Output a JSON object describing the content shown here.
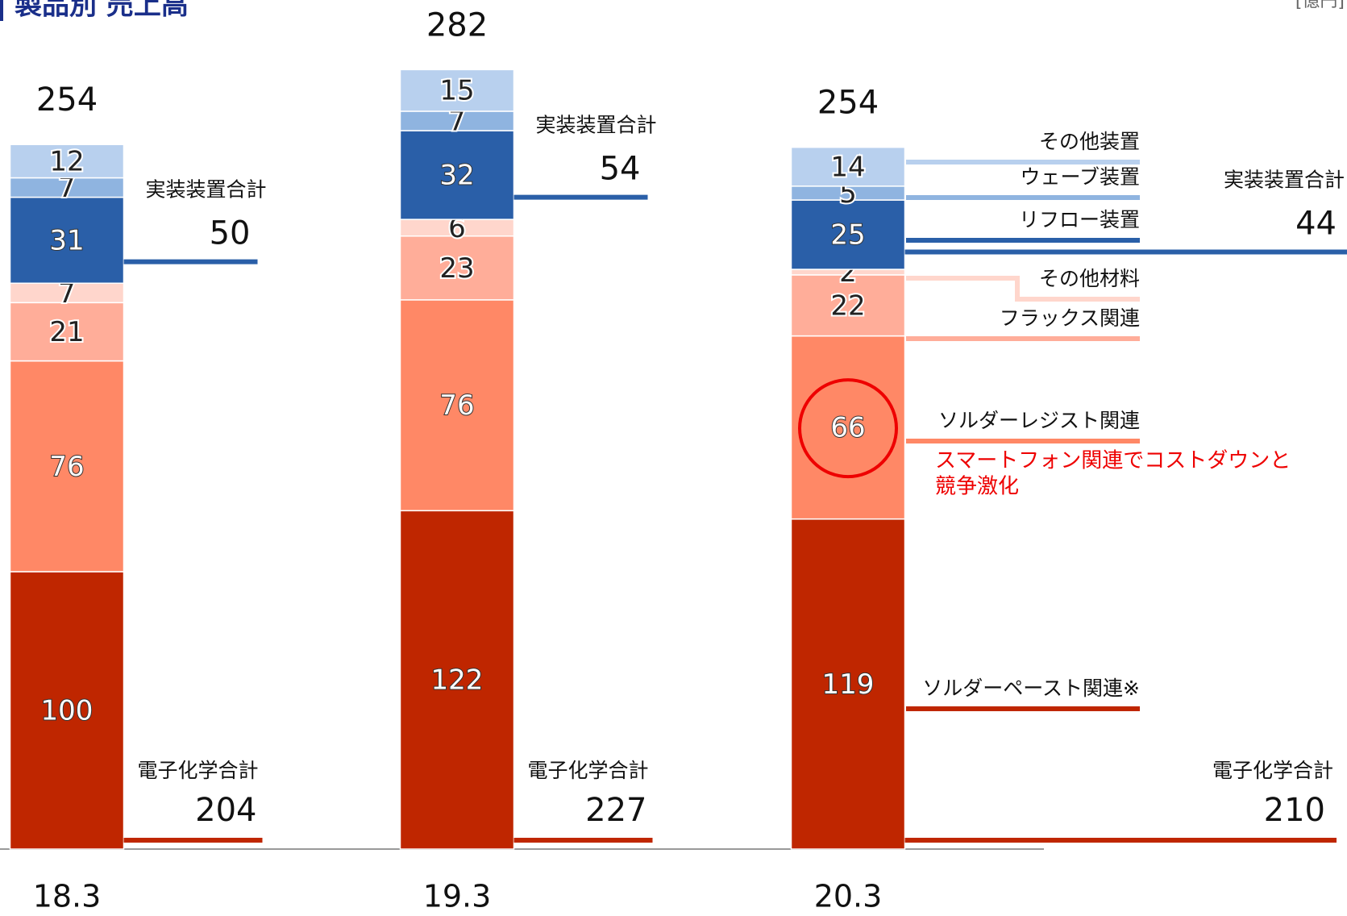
{
  "chart_data": {
    "type": "stacked_bar",
    "title": "製品別 売上高",
    "unit": "[億円]",
    "categories": [
      "18.3",
      "19.3",
      "20.3"
    ],
    "series": [
      {
        "name": "ソルダーペースト関連※",
        "color": "#bf2600",
        "values": [
          100,
          122,
          119
        ]
      },
      {
        "name": "ソルダーレジスト関連",
        "color": "#ff8866",
        "values": [
          76,
          76,
          66
        ]
      },
      {
        "name": "フラックス関連",
        "color": "#ffad99",
        "values": [
          21,
          23,
          22
        ]
      },
      {
        "name": "その他材料",
        "color": "#ffd6cc",
        "values": [
          7,
          6,
          2
        ]
      },
      {
        "name": "リフロー装置",
        "color": "#2a5fa8",
        "values": [
          31,
          32,
          25
        ]
      },
      {
        "name": "ウェーブ装置",
        "color": "#8fb4e0",
        "values": [
          7,
          7,
          5
        ]
      },
      {
        "name": "その他装置",
        "color": "#b8d0ee",
        "values": [
          12,
          15,
          14
        ]
      }
    ],
    "totals": [
      254,
      282,
      254
    ],
    "group_totals": [
      {
        "name": "実装装置合計",
        "color": "#2a5fa8",
        "values": [
          50,
          54,
          44
        ]
      },
      {
        "name": "電子化学合計",
        "color": "#bf2600",
        "values": [
          204,
          227,
          210
        ]
      }
    ],
    "annotation": [
      "スマートフォン関連でコストダウンと",
      "競争激化"
    ],
    "ylim": [
      0,
      300
    ]
  }
}
